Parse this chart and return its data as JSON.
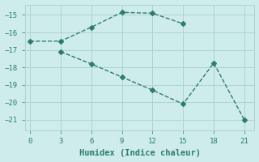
{
  "xlabel": "Humidex (Indice chaleur)",
  "bg_color": "#ceecea",
  "line_color": "#2d7d6e",
  "grid_color": "#aed4d0",
  "grid_minor_color": "#c8e8e4",
  "line1_x": [
    0,
    3,
    6,
    9,
    12,
    15
  ],
  "line1_y": [
    -16.5,
    -16.5,
    -15.7,
    -14.85,
    -14.9,
    -15.5
  ],
  "line2_x": [
    3,
    6,
    9,
    12,
    15,
    18,
    21
  ],
  "line2_y": [
    -17.1,
    -17.8,
    -18.55,
    -19.3,
    -20.1,
    -17.75,
    -21.0
  ],
  "xlim": [
    -0.5,
    22
  ],
  "ylim": [
    -21.6,
    -14.4
  ],
  "xticks": [
    0,
    3,
    6,
    9,
    12,
    15,
    18,
    21
  ],
  "yticks": [
    -15,
    -16,
    -17,
    -18,
    -19,
    -20,
    -21
  ],
  "marker": "D",
  "marker_size": 3,
  "linewidth": 1.0,
  "tick_fontsize": 6.5,
  "xlabel_fontsize": 7.5
}
